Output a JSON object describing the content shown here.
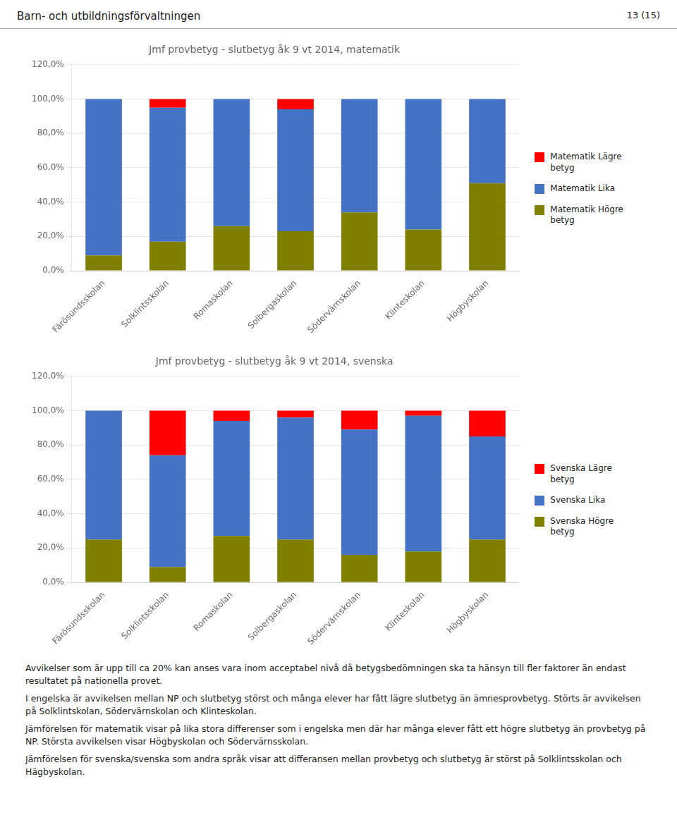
{
  "header": "Barn- och utbildningsförvaltningen",
  "page_number": "13 (15)",
  "chart_data": [
    {
      "type": "bar",
      "stacked": true,
      "grid": true,
      "title": "Jmf provbetyg - slutbetyg åk 9 vt 2014, matematik",
      "categories": [
        "Färösundsskolan",
        "Solklintsskolan",
        "Romaskolan",
        "Solbergaskolan",
        "Södervärnskolan",
        "Klinteskolan",
        "Högbyskolan"
      ],
      "series": [
        {
          "name": "Matematik Högre\nbetyg",
          "color": "#7F7F00",
          "values": [
            9.0,
            17.0,
            26.0,
            23.0,
            34.0,
            24.0,
            51.0
          ]
        },
        {
          "name": "Matematik Lika",
          "color": "#4472C4",
          "values": [
            91.0,
            78.0,
            74.0,
            71.0,
            66.0,
            76.0,
            49.0
          ]
        },
        {
          "name": "Matematik Lägre\nbetyg",
          "color": "#FF0000",
          "values": [
            0.0,
            5.0,
            0.0,
            6.0,
            0.0,
            0.0,
            0.0
          ]
        }
      ],
      "ylim": [
        0,
        120
      ],
      "yticks": [
        {
          "value": 0,
          "label": "0,0%"
        },
        {
          "value": 20,
          "label": "20,0%"
        },
        {
          "value": 40,
          "label": "40,0%"
        },
        {
          "value": 60,
          "label": "60,0%"
        },
        {
          "value": 80,
          "label": "80,0%"
        },
        {
          "value": 100,
          "label": "100,0%"
        },
        {
          "value": 120,
          "label": "120,0%"
        }
      ]
    },
    {
      "type": "bar",
      "stacked": true,
      "grid": true,
      "title": "Jmf provbetyg - slutbetyg åk 9 vt 2014, svenska",
      "categories": [
        "Färösundsskolan",
        "Solklintsskolan",
        "Romaskolan",
        "Solbergaskolan",
        "Södervärnskolan",
        "Klinteskolan",
        "Högbyskolan"
      ],
      "series": [
        {
          "name": "Svenska Högre\nbetyg",
          "color": "#7F7F00",
          "values": [
            25.0,
            9.0,
            27.0,
            25.0,
            16.0,
            18.0,
            25.0
          ]
        },
        {
          "name": "Svenska Lika",
          "color": "#4472C4",
          "values": [
            75.0,
            65.0,
            67.0,
            71.0,
            73.0,
            79.0,
            60.0
          ]
        },
        {
          "name": "Svenska Lägre\nbetyg",
          "color": "#FF0000",
          "values": [
            0.0,
            26.0,
            6.0,
            4.0,
            11.0,
            3.0,
            15.0
          ]
        }
      ],
      "ylim": [
        0,
        120
      ],
      "yticks": [
        {
          "value": 0,
          "label": "0,0%"
        },
        {
          "value": 20,
          "label": "20,0%"
        },
        {
          "value": 40,
          "label": "40,0%"
        },
        {
          "value": 60,
          "label": "60,0%"
        },
        {
          "value": 80,
          "label": "80,0%"
        },
        {
          "value": 100,
          "label": "100,0%"
        },
        {
          "value": 120,
          "label": "120,0%"
        }
      ]
    }
  ],
  "body_texts": [
    "Avvikelser som är  upp till ca 20% kan anses vara inom acceptabel nivå då betygsbedömningen ska ta hänsyn till fler faktorer än endast resultatet på nationella provet.",
    "I engelska är avvikelsen mellan NP och slutbetyg störst och många elever har fått lägre slutbetyg än ämnesprovbetyg. Störts är avvikelsen på Solklintskolan, Södervärnskolan och Klinteskolan.",
    "Jämförelsen för matematik visar på lika stora differenser som i engelska men där har många elever fått ett högre slutbetyg än provbetyg på NP. Största avvikelsen visar Högbyskolan och Södervärnsskolan.",
    "Jämförelsen för svenska/svenska som andra språk visar att differansen mellan provbetyg och slutbetyg är störst på Solklintsskolan och Hägbyskolan."
  ]
}
